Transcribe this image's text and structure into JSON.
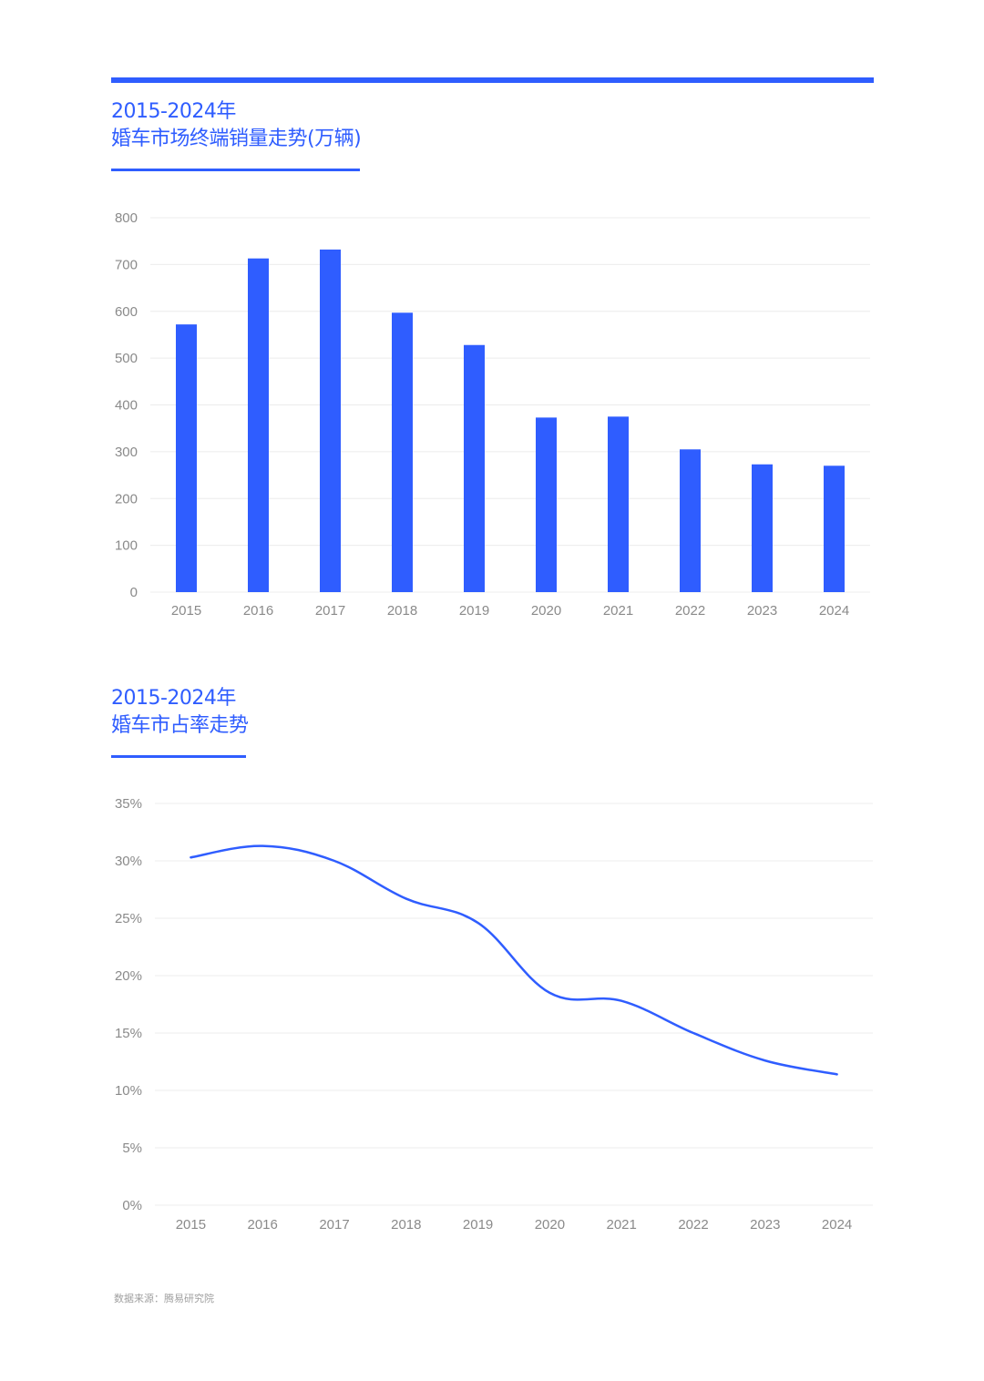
{
  "colors": {
    "accent": "#2f5dff",
    "grid": "#ececec",
    "tick_text": "#8a8a8a",
    "source_text": "#a0a0a0",
    "background": "#ffffff"
  },
  "source": "数据来源：腾易研究院",
  "chart_data": [
    {
      "type": "bar",
      "title_line1": "2015-2024年",
      "title_line2": "婚车市场终端销量走势(万辆)",
      "categories": [
        "2015",
        "2016",
        "2017",
        "2018",
        "2019",
        "2020",
        "2021",
        "2022",
        "2023",
        "2024"
      ],
      "values": [
        572,
        713,
        732,
        597,
        528,
        373,
        375,
        305,
        273,
        270
      ],
      "yticks": [
        "0",
        "100",
        "200",
        "300",
        "400",
        "500",
        "600",
        "700",
        "800"
      ],
      "ylim": [
        0,
        800
      ],
      "grid": true,
      "legend": "none"
    },
    {
      "type": "line",
      "title_line1": "2015-2024年",
      "title_line2": "婚车市占率走势",
      "categories": [
        "2015",
        "2016",
        "2017",
        "2018",
        "2019",
        "2020",
        "2021",
        "2022",
        "2023",
        "2024"
      ],
      "values": [
        30.3,
        31.3,
        30.0,
        26.7,
        24.6,
        18.5,
        17.8,
        15.0,
        12.6,
        11.4
      ],
      "unit": "%",
      "yticks": [
        "0%",
        "5%",
        "10%",
        "15%",
        "20%",
        "25%",
        "30%",
        "35%"
      ],
      "ylim": [
        0,
        35
      ],
      "grid": true,
      "legend": "none"
    }
  ]
}
